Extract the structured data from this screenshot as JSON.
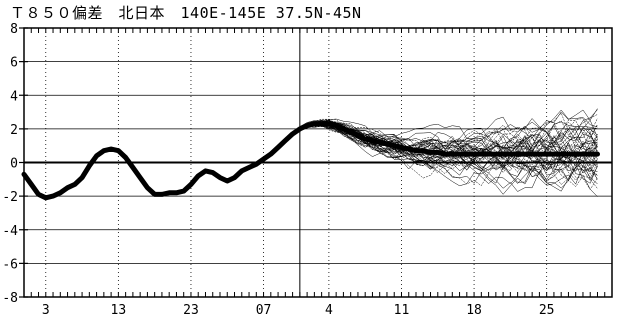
{
  "chart_data": {
    "type": "line",
    "title": "Ｔ８５０偏差　北日本　140E-145E 37.5N-45N",
    "ylim": [
      -8,
      8
    ],
    "y_ticks": [
      8,
      6,
      4,
      2,
      0,
      -2,
      -4,
      -6,
      -8
    ],
    "y_tick_labels": [
      "8",
      "6",
      "4",
      "2",
      "0",
      "-2",
      "-4",
      "-6",
      "-8"
    ],
    "x_range": [
      0,
      81
    ],
    "forecast_start_x": 38,
    "x_ticks": [
      {
        "x": 3,
        "label": "3"
      },
      {
        "x": 13,
        "label": "13"
      },
      {
        "x": 23,
        "label": "23"
      },
      {
        "x": 33,
        "label": "07"
      },
      {
        "x": 42,
        "label": "4"
      },
      {
        "x": 52,
        "label": "11"
      },
      {
        "x": 62,
        "label": "18"
      },
      {
        "x": 72,
        "label": "25"
      }
    ],
    "grid": true,
    "series": [
      {
        "role": "observed-and-ensemble-mean",
        "x": [
          0,
          1,
          2,
          3,
          4,
          5,
          6,
          7,
          8,
          9,
          10,
          11,
          12,
          13,
          14,
          15,
          16,
          17,
          18,
          19,
          20,
          21,
          22,
          23,
          24,
          25,
          26,
          27,
          28,
          29,
          30,
          31,
          32,
          33,
          34,
          35,
          36,
          37,
          38,
          39,
          40,
          41,
          42,
          43,
          44,
          45,
          46,
          47,
          48,
          49,
          50,
          51,
          52,
          53,
          54,
          55,
          56,
          57,
          58,
          59,
          60,
          61,
          62,
          63,
          64,
          65,
          66,
          67,
          68,
          69,
          70,
          71,
          72,
          73,
          74,
          75,
          76,
          77,
          78,
          79
        ],
        "y": [
          -0.7,
          -1.3,
          -1.9,
          -2.1,
          -2.0,
          -1.8,
          -1.5,
          -1.3,
          -0.9,
          -0.2,
          0.4,
          0.7,
          0.8,
          0.7,
          0.3,
          -0.3,
          -0.9,
          -1.5,
          -1.9,
          -1.9,
          -1.8,
          -1.8,
          -1.7,
          -1.3,
          -0.8,
          -0.5,
          -0.6,
          -0.9,
          -1.1,
          -0.9,
          -0.5,
          -0.3,
          -0.1,
          0.2,
          0.5,
          0.9,
          1.3,
          1.7,
          2.0,
          2.2,
          2.3,
          2.3,
          2.3,
          2.2,
          2.0,
          1.8,
          1.6,
          1.4,
          1.3,
          1.2,
          1.1,
          1.0,
          0.9,
          0.8,
          0.7,
          0.7,
          0.6,
          0.6,
          0.5,
          0.5,
          0.5,
          0.5,
          0.5,
          0.5,
          0.5,
          0.5,
          0.5,
          0.5,
          0.5,
          0.5,
          0.5,
          0.5,
          0.5,
          0.5,
          0.5,
          0.5,
          0.5,
          0.5,
          0.5,
          0.5
        ]
      }
    ],
    "ensemble_members_count": 50
  }
}
